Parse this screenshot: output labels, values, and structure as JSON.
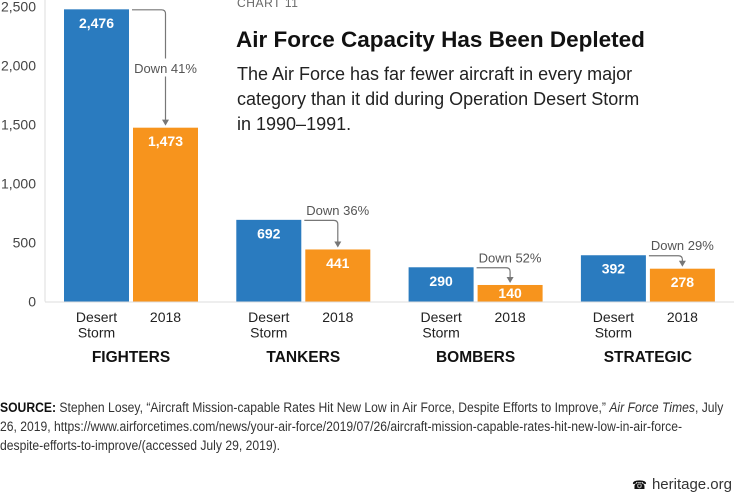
{
  "header": {
    "kicker": "CHART 11",
    "title": "Air Force Capacity Has Been Depleted",
    "subtitle_lines": [
      "The Air Force has far fewer aircraft in every major",
      "category than it did during Operation Desert Storm",
      "in 1990–1991."
    ]
  },
  "chart_data": {
    "type": "bar",
    "title": "Air Force Capacity Has Been Depleted",
    "xlabel": "",
    "ylabel": "",
    "ylim": [
      0,
      2500
    ],
    "yticks": [
      0,
      500,
      1000,
      1500,
      2000,
      2500
    ],
    "ytick_labels": [
      "0",
      "500",
      "1,000",
      "1,500",
      "2,000",
      "2,500"
    ],
    "grid": false,
    "categories": [
      "FIGHTERS",
      "TANKERS",
      "BOMBERS",
      "STRATEGIC"
    ],
    "series": [
      {
        "name": "Desert Storm",
        "color": "#2a7bbf",
        "values": [
          2476,
          692,
          290,
          392
        ],
        "value_labels": [
          "2,476",
          "692",
          "290",
          "392"
        ]
      },
      {
        "name": "2018",
        "color": "#f7941d",
        "values": [
          1473,
          441,
          140,
          278
        ],
        "value_labels": [
          "1,473",
          "441",
          "140",
          "278"
        ]
      }
    ],
    "annotations": [
      "Down 41%",
      "Down 36%",
      "Down 52%",
      "Down 29%"
    ],
    "axis_color": "#dddddd",
    "annotation_color": "#777777"
  },
  "source": {
    "label": "SOURCE:",
    "line1_before": " Stephen Losey, “Aircraft Mission-capable Rates Hit New Low in Air Force, Despite Efforts to Improve,” ",
    "line1_italic": "Air Force Times",
    "line1_after": ", July",
    "line2": "26, 2019, https://www.airforcetimes.com/news/your-air-force/2019/07/26/aircraft-mission-capable-rates-hit-new-low-in-air-force-",
    "line3": "despite-efforts-to-improve/(accessed July 29, 2019)."
  },
  "footer": {
    "icon": "liberty-bell-icon",
    "icon_glyph": "☎",
    "site": "heritage.org"
  }
}
